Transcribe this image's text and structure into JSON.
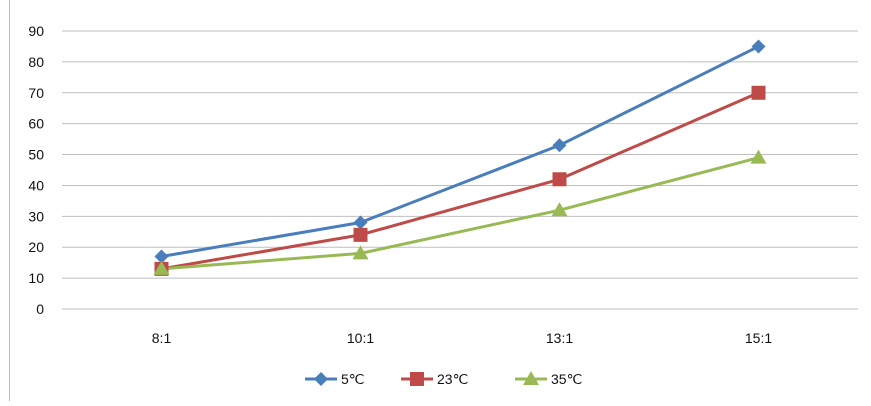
{
  "chart_data": {
    "type": "line",
    "title": "",
    "xlabel": "",
    "ylabel": "",
    "categories": [
      "8:1",
      "10:1",
      "13:1",
      "15:1"
    ],
    "ylim": [
      0,
      90
    ],
    "yticks": [
      "0",
      "10",
      "20",
      "30",
      "40",
      "50",
      "60",
      "70",
      "80",
      "90"
    ],
    "grid": true,
    "legend_position": "bottom",
    "series": [
      {
        "name": "5℃",
        "values": [
          17,
          28,
          53,
          85
        ],
        "color": "#4a7ebb",
        "marker": "diamond"
      },
      {
        "name": "23℃",
        "values": [
          13,
          24,
          42,
          70
        ],
        "color": "#be4b48",
        "marker": "square"
      },
      {
        "name": "35℃",
        "values": [
          13,
          18,
          32,
          49
        ],
        "color": "#98b954",
        "marker": "triangle"
      }
    ]
  }
}
